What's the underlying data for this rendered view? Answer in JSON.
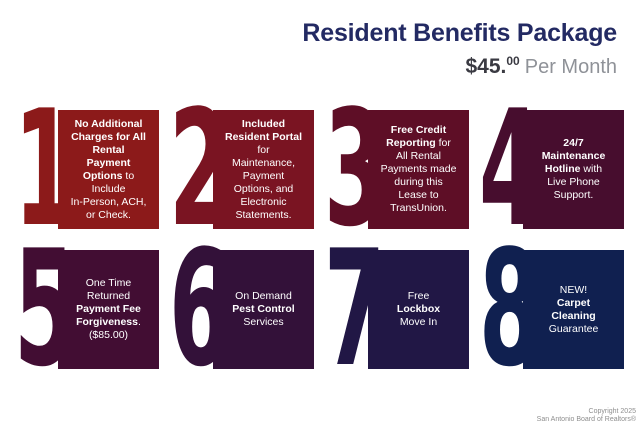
{
  "header": {
    "title": "Resident Benefits Package",
    "title_color": "#232a63",
    "price_amount": "$45.",
    "price_cents": "00",
    "price_period": "Per Month",
    "price_color": "#3a3a42",
    "period_color": "#8f9298"
  },
  "tiles": [
    {
      "number": "1",
      "color": "#8c1a1a",
      "runs": [
        {
          "t": "No Additional\nCharges for All\nRental\nPayment\nOptions",
          "b": true
        },
        {
          "t": " to\nInclude\nIn-Person, ACH,\nor Check.",
          "b": false
        }
      ]
    },
    {
      "number": "2",
      "color": "#7a1422",
      "runs": [
        {
          "t": "Included\nResident Portal",
          "b": true
        },
        {
          "t": "\nfor\nMaintenance,\nPayment\nOptions, and\nElectronic\nStatements.",
          "b": false
        }
      ]
    },
    {
      "number": "3",
      "color": "#5e0e26",
      "runs": [
        {
          "t": "Free Credit\nReporting",
          "b": true
        },
        {
          "t": " for\nAll Rental\nPayments made\nduring this\nLease to\nTransUnion.",
          "b": false
        }
      ]
    },
    {
      "number": "4",
      "color": "#470d2e",
      "runs": [
        {
          "t": "24/7\nMaintenance\nHotline",
          "b": true
        },
        {
          "t": " with\nLive Phone\nSupport.",
          "b": false
        }
      ]
    },
    {
      "number": "5",
      "color": "#420d33",
      "runs": [
        {
          "t": "One Time\nReturned\n",
          "b": false
        },
        {
          "t": "Payment Fee\nForgiveness",
          "b": true
        },
        {
          "t": ".\n($85.00)",
          "b": false
        }
      ]
    },
    {
      "number": "6",
      "color": "#331139",
      "runs": [
        {
          "t": "On Demand\n",
          "b": false
        },
        {
          "t": "Pest Control",
          "b": true
        },
        {
          "t": "\nServices",
          "b": false
        }
      ]
    },
    {
      "number": "7",
      "color": "#211745",
      "runs": [
        {
          "t": "Free\n",
          "b": false
        },
        {
          "t": "Lockbox",
          "b": true
        },
        {
          "t": "\nMove In",
          "b": false
        }
      ]
    },
    {
      "number": "8",
      "color": "#102050",
      "runs": [
        {
          "t": "NEW!\n",
          "b": false
        },
        {
          "t": "Carpet\nCleaning",
          "b": true
        },
        {
          "t": "\nGuarantee",
          "b": false
        }
      ]
    }
  ],
  "footer": {
    "line1": "Copyright 2025",
    "line2": "San Antonio Board of Realtors®",
    "color": "#8e8e8e"
  }
}
